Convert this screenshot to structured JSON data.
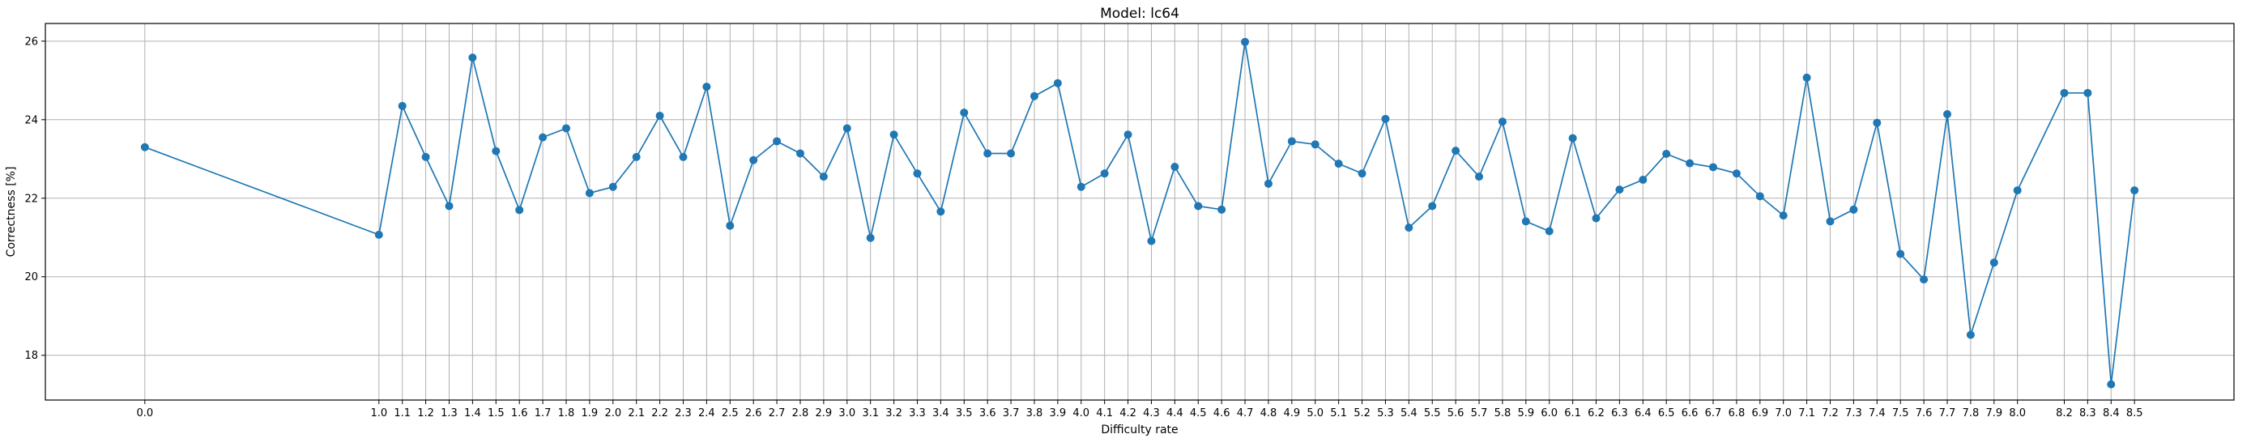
{
  "chart_data": {
    "type": "line",
    "title": "Model: lc64",
    "xlabel": "Difficulty rate",
    "ylabel": "Correctness [%]",
    "xlim": [
      -0.425,
      8.925
    ],
    "ylim": [
      16.86,
      26.45
    ],
    "yticks": [
      18,
      20,
      22,
      24,
      26
    ],
    "grid": true,
    "x": [
      0.0,
      1.0,
      1.1,
      1.2,
      1.3,
      1.4,
      1.5,
      1.6,
      1.7,
      1.8,
      1.9,
      2.0,
      2.1,
      2.2,
      2.3,
      2.4,
      2.5,
      2.6,
      2.7,
      2.8,
      2.9,
      3.0,
      3.1,
      3.2,
      3.3,
      3.4,
      3.5,
      3.6,
      3.7,
      3.8,
      3.9,
      4.0,
      4.1,
      4.2,
      4.3,
      4.4,
      4.5,
      4.6,
      4.7,
      4.8,
      4.9,
      5.0,
      5.1,
      5.2,
      5.3,
      5.4,
      5.5,
      5.6,
      5.7,
      5.8,
      5.9,
      6.0,
      6.1,
      6.2,
      6.3,
      6.4,
      6.5,
      6.6,
      6.7,
      6.8,
      6.9,
      7.0,
      7.1,
      7.2,
      7.3,
      7.4,
      7.5,
      7.6,
      7.7,
      7.8,
      7.9,
      8.0,
      8.2,
      8.3,
      8.4,
      8.5
    ],
    "x_tick_labels": [
      "0.0",
      "1.0",
      "1.1",
      "1.2",
      "1.3",
      "1.4",
      "1.5",
      "1.6",
      "1.7",
      "1.8",
      "1.9",
      "2.0",
      "2.1",
      "2.2",
      "2.3",
      "2.4",
      "2.5",
      "2.6",
      "2.7",
      "2.8",
      "2.9",
      "3.0",
      "3.1",
      "3.2",
      "3.3",
      "3.4",
      "3.5",
      "3.6",
      "3.7",
      "3.8",
      "3.9",
      "4.0",
      "4.1",
      "4.2",
      "4.3",
      "4.4",
      "4.5",
      "4.6",
      "4.7",
      "4.8",
      "4.9",
      "5.0",
      "5.1",
      "5.2",
      "5.3",
      "5.4",
      "5.5",
      "5.6",
      "5.7",
      "5.8",
      "5.9",
      "6.0",
      "6.1",
      "6.2",
      "6.3",
      "6.4",
      "6.5",
      "6.6",
      "6.7",
      "6.8",
      "6.9",
      "7.0",
      "7.1",
      "7.2",
      "7.3",
      "7.4",
      "7.5",
      "7.6",
      "7.7",
      "7.8",
      "7.9",
      "8.0",
      "8.2",
      "8.3",
      "8.4",
      "8.5"
    ],
    "series": [
      {
        "color": "#1f77b4",
        "values": [
          23.3,
          21.07,
          24.35,
          23.05,
          21.8,
          25.58,
          23.2,
          21.7,
          23.55,
          23.78,
          22.13,
          22.29,
          23.05,
          24.1,
          23.05,
          24.84,
          21.3,
          22.97,
          23.45,
          23.14,
          22.55,
          23.78,
          20.99,
          23.62,
          22.63,
          21.66,
          24.18,
          23.14,
          23.14,
          24.6,
          24.93,
          22.29,
          22.63,
          23.62,
          20.91,
          22.8,
          21.8,
          21.71,
          25.98,
          22.37,
          23.45,
          23.37,
          22.88,
          22.63,
          24.02,
          21.25,
          21.8,
          23.21,
          22.55,
          23.95,
          21.41,
          21.16,
          23.53,
          21.49,
          22.22,
          22.47,
          23.13,
          22.89,
          22.79,
          22.63,
          22.05,
          21.56,
          25.07,
          21.41,
          21.71,
          23.92,
          20.58,
          19.93,
          24.14,
          18.52,
          20.36,
          22.2,
          24.68,
          24.68,
          17.26,
          22.2
        ]
      }
    ]
  }
}
